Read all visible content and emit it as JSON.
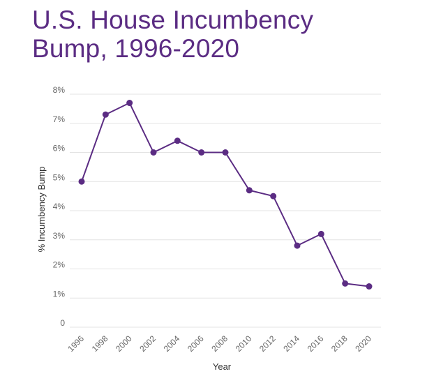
{
  "title": {
    "line1": "U.S. House Incumbency",
    "line2": "Bump, 1996-2020"
  },
  "colors": {
    "accent": "#5b2c83",
    "grid": "#e3e3e3",
    "tick_text": "#666666"
  },
  "chart_data": {
    "type": "line",
    "title": "U.S. House Incumbency Bump, 1996-2020",
    "xlabel": "Year",
    "ylabel": "% Incumbency Bump",
    "categories": [
      "1996",
      "1998",
      "2000",
      "2002",
      "2004",
      "2006",
      "2008",
      "2010",
      "2012",
      "2014",
      "2016",
      "2018",
      "2020"
    ],
    "series": [
      {
        "name": "% Incumbency Bump",
        "values": [
          5.0,
          7.3,
          7.7,
          6.0,
          6.4,
          6.0,
          6.0,
          4.7,
          4.5,
          2.8,
          3.2,
          1.5,
          1.4
        ]
      }
    ],
    "ylim": [
      0,
      8
    ],
    "yticks": [
      0,
      1,
      2,
      3,
      4,
      5,
      6,
      7,
      8
    ],
    "ytick_labels": [
      "0",
      "1%",
      "2%",
      "3%",
      "4%",
      "5%",
      "6%",
      "7%",
      "8%"
    ],
    "grid": true
  }
}
